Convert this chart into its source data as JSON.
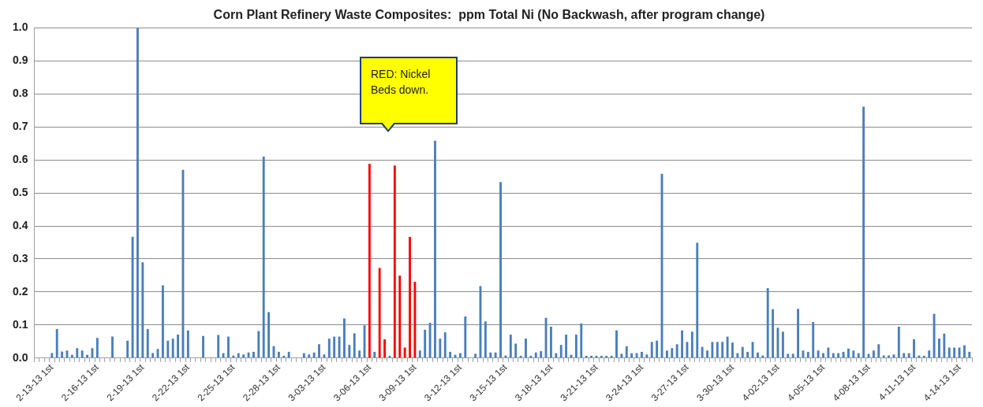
{
  "chart_data": {
    "type": "bar",
    "title": "Corn Plant Refinery Waste Composites:  ppm Total Ni (No Backwash, after program change)",
    "categories": [
      null,
      null,
      null,
      "2-13-13 1st",
      null,
      null,
      null,
      null,
      null,
      null,
      null,
      null,
      "2-16-13 1st",
      null,
      null,
      null,
      null,
      null,
      null,
      null,
      null,
      "2-19-13 1st",
      null,
      null,
      null,
      null,
      null,
      null,
      null,
      null,
      "2-22-13 1st",
      null,
      null,
      null,
      null,
      null,
      null,
      null,
      null,
      "2-25-13 1st",
      null,
      null,
      null,
      null,
      null,
      null,
      null,
      null,
      "2-28-13 1st",
      null,
      null,
      null,
      null,
      null,
      null,
      null,
      null,
      "3-03-13 1st",
      null,
      null,
      null,
      null,
      null,
      null,
      null,
      null,
      "3-06-13 1st",
      null,
      null,
      null,
      null,
      null,
      null,
      null,
      null,
      "3-09-13 1st",
      null,
      null,
      null,
      null,
      null,
      null,
      null,
      null,
      "3-12-13 1st",
      null,
      null,
      null,
      null,
      null,
      null,
      null,
      null,
      "3-15-13 1st",
      null,
      null,
      null,
      null,
      null,
      null,
      null,
      null,
      "3-18-13 1st",
      null,
      null,
      null,
      null,
      null,
      null,
      null,
      null,
      "3-21-13 1st",
      null,
      null,
      null,
      null,
      null,
      null,
      null,
      null,
      "3-24-13 1st",
      null,
      null,
      null,
      null,
      null,
      null,
      null,
      null,
      "3-27-13 1st",
      null,
      null,
      null,
      null,
      null,
      null,
      null,
      null,
      "3-30-13 1st",
      null,
      null,
      null,
      null,
      null,
      null,
      null,
      null,
      "4-02-13 1st",
      null,
      null,
      null,
      null,
      null,
      null,
      null,
      null,
      "4-05-13 1st",
      null,
      null,
      null,
      null,
      null,
      null,
      null,
      null,
      "4-08-13 1st",
      null,
      null,
      null,
      null,
      null,
      null,
      null,
      null,
      "4-11-13 1st",
      null,
      null,
      null,
      null,
      null,
      null,
      null,
      null,
      "4-14-13 1st",
      null,
      null
    ],
    "values": [
      null,
      null,
      null,
      0.015,
      0.088,
      0.02,
      0.023,
      0.01,
      0.03,
      0.023,
      0.01,
      0.03,
      0.061,
      null,
      null,
      0.065,
      null,
      null,
      0.053,
      0.367,
      1.0,
      0.29,
      0.088,
      0.015,
      0.028,
      0.22,
      0.053,
      0.059,
      0.071,
      0.57,
      0.084,
      null,
      null,
      0.067,
      null,
      null,
      0.07,
      0.015,
      0.065,
      0.008,
      0.015,
      0.011,
      0.017,
      0.019,
      0.082,
      0.61,
      0.139,
      0.036,
      0.019,
      0.007,
      0.019,
      null,
      null,
      0.015,
      0.011,
      0.017,
      0.042,
      0.011,
      0.059,
      0.065,
      0.065,
      0.12,
      0.04,
      0.075,
      0.023,
      0.099,
      0.588,
      0.019,
      0.273,
      0.057,
      0.007,
      0.583,
      0.25,
      0.032,
      0.367,
      0.231,
      0.023,
      0.086,
      0.107,
      0.658,
      0.059,
      0.078,
      0.019,
      0.01,
      0.015,
      0.126,
      null,
      0.013,
      0.218,
      0.111,
      0.017,
      0.017,
      0.533,
      0.008,
      0.071,
      0.044,
      0.007,
      0.059,
      0.007,
      0.017,
      0.021,
      0.122,
      0.095,
      0.015,
      0.04,
      0.071,
      0.01,
      0.071,
      0.105,
      0.007,
      0.007,
      0.007,
      0.007,
      0.007,
      0.007,
      0.084,
      0.013,
      0.036,
      0.015,
      0.015,
      0.019,
      0.011,
      0.049,
      0.053,
      0.558,
      0.023,
      0.03,
      0.042,
      0.084,
      0.049,
      0.08,
      0.349,
      0.034,
      0.023,
      0.049,
      0.049,
      0.049,
      0.065,
      0.047,
      0.015,
      0.034,
      0.019,
      0.049,
      0.017,
      0.008,
      0.212,
      0.148,
      0.092,
      0.08,
      0.013,
      0.013,
      0.149,
      0.023,
      0.019,
      0.109,
      0.023,
      0.015,
      0.032,
      0.015,
      0.015,
      0.019,
      0.029,
      0.023,
      0.015,
      0.761,
      0.013,
      0.023,
      0.042,
      0.008,
      0.008,
      0.011,
      0.095,
      0.015,
      0.015,
      0.057,
      0.008,
      0.007,
      0.023,
      0.134,
      0.059,
      0.074,
      0.032,
      0.032,
      0.032,
      0.039,
      0.019
    ],
    "colors": [
      "#4a7ebb",
      "#4a7ebb",
      "#4a7ebb",
      "#4a7ebb",
      "#4a7ebb",
      "#4a7ebb",
      "#4a7ebb",
      "#4a7ebb",
      "#4a7ebb",
      "#4a7ebb",
      "#4a7ebb",
      "#4a7ebb",
      "#4a7ebb",
      "#4a7ebb",
      "#4a7ebb",
      "#4a7ebb",
      "#4a7ebb",
      "#4a7ebb",
      "#4a7ebb",
      "#4a7ebb",
      "#4a7ebb",
      "#4a7ebb",
      "#4a7ebb",
      "#4a7ebb",
      "#4a7ebb",
      "#4a7ebb",
      "#4a7ebb",
      "#4a7ebb",
      "#4a7ebb",
      "#4a7ebb",
      "#4a7ebb",
      "#4a7ebb",
      "#4a7ebb",
      "#4a7ebb",
      "#4a7ebb",
      "#4a7ebb",
      "#4a7ebb",
      "#4a7ebb",
      "#4a7ebb",
      "#4a7ebb",
      "#4a7ebb",
      "#4a7ebb",
      "#4a7ebb",
      "#4a7ebb",
      "#4a7ebb",
      "#4a7ebb",
      "#4a7ebb",
      "#4a7ebb",
      "#4a7ebb",
      "#4a7ebb",
      "#4a7ebb",
      "#4a7ebb",
      "#4a7ebb",
      "#4a7ebb",
      "#4a7ebb",
      "#4a7ebb",
      "#4a7ebb",
      "#4a7ebb",
      "#4a7ebb",
      "#4a7ebb",
      "#4a7ebb",
      "#4a7ebb",
      "#4a7ebb",
      "#4a7ebb",
      "#4a7ebb",
      "#4a7ebb",
      "#ff0000",
      "#4a7ebb",
      "#ff0000",
      "#ff0000",
      "#4a7ebb",
      "#ff0000",
      "#ff0000",
      "#ff0000",
      "#ff0000",
      "#ff0000",
      "#4a7ebb",
      "#4a7ebb",
      "#4a7ebb",
      "#4a7ebb",
      "#4a7ebb",
      "#4a7ebb",
      "#4a7ebb",
      "#4a7ebb",
      "#4a7ebb",
      "#4a7ebb",
      "#4a7ebb",
      "#4a7ebb",
      "#4a7ebb",
      "#4a7ebb",
      "#4a7ebb",
      "#4a7ebb",
      "#4a7ebb",
      "#4a7ebb",
      "#4a7ebb",
      "#4a7ebb",
      "#4a7ebb",
      "#4a7ebb",
      "#4a7ebb",
      "#4a7ebb",
      "#4a7ebb",
      "#4a7ebb",
      "#4a7ebb",
      "#4a7ebb",
      "#4a7ebb",
      "#4a7ebb",
      "#4a7ebb",
      "#4a7ebb",
      "#4a7ebb",
      "#4a7ebb",
      "#4a7ebb",
      "#4a7ebb",
      "#4a7ebb",
      "#4a7ebb",
      "#4a7ebb",
      "#4a7ebb",
      "#4a7ebb",
      "#4a7ebb",
      "#4a7ebb",
      "#4a7ebb",
      "#4a7ebb",
      "#4a7ebb",
      "#4a7ebb",
      "#4a7ebb",
      "#4a7ebb",
      "#4a7ebb",
      "#4a7ebb",
      "#4a7ebb",
      "#4a7ebb",
      "#4a7ebb",
      "#4a7ebb",
      "#4a7ebb",
      "#4a7ebb",
      "#4a7ebb",
      "#4a7ebb",
      "#4a7ebb",
      "#4a7ebb",
      "#4a7ebb",
      "#4a7ebb",
      "#4a7ebb",
      "#4a7ebb",
      "#4a7ebb",
      "#4a7ebb",
      "#4a7ebb",
      "#4a7ebb",
      "#4a7ebb",
      "#4a7ebb",
      "#4a7ebb",
      "#4a7ebb",
      "#4a7ebb",
      "#4a7ebb",
      "#4a7ebb",
      "#4a7ebb",
      "#4a7ebb",
      "#4a7ebb",
      "#4a7ebb",
      "#4a7ebb",
      "#4a7ebb",
      "#4a7ebb",
      "#4a7ebb",
      "#4a7ebb",
      "#4a7ebb",
      "#4a7ebb",
      "#4a7ebb",
      "#4a7ebb",
      "#4a7ebb",
      "#4a7ebb",
      "#4a7ebb",
      "#4a7ebb",
      "#4a7ebb",
      "#4a7ebb",
      "#4a7ebb",
      "#4a7ebb",
      "#4a7ebb",
      "#4a7ebb",
      "#4a7ebb",
      "#4a7ebb",
      "#4a7ebb",
      "#4a7ebb",
      "#4a7ebb",
      "#4a7ebb",
      "#4a7ebb",
      "#4a7ebb",
      "#4a7ebb",
      "#4a7ebb",
      "#4a7ebb"
    ],
    "ylim": [
      0,
      1
    ],
    "yticks": [
      {
        "value": 0,
        "label": "0.0"
      },
      {
        "value": 0.1,
        "label": "0.1"
      },
      {
        "value": 0.2,
        "label": "0.2"
      },
      {
        "value": 0.3,
        "label": "0.3"
      },
      {
        "value": 0.4,
        "label": "0.4"
      },
      {
        "value": 0.5,
        "label": "0.5"
      },
      {
        "value": 0.6,
        "label": "0.6"
      },
      {
        "value": 0.7,
        "label": "0.7"
      },
      {
        "value": 0.8,
        "label": "0.8"
      },
      {
        "value": 0.9,
        "label": "0.9"
      },
      {
        "value": 1,
        "label": "1.0"
      }
    ],
    "grid": "y",
    "legend": false,
    "annotations": [
      "RED: Nickel Beds down."
    ]
  }
}
